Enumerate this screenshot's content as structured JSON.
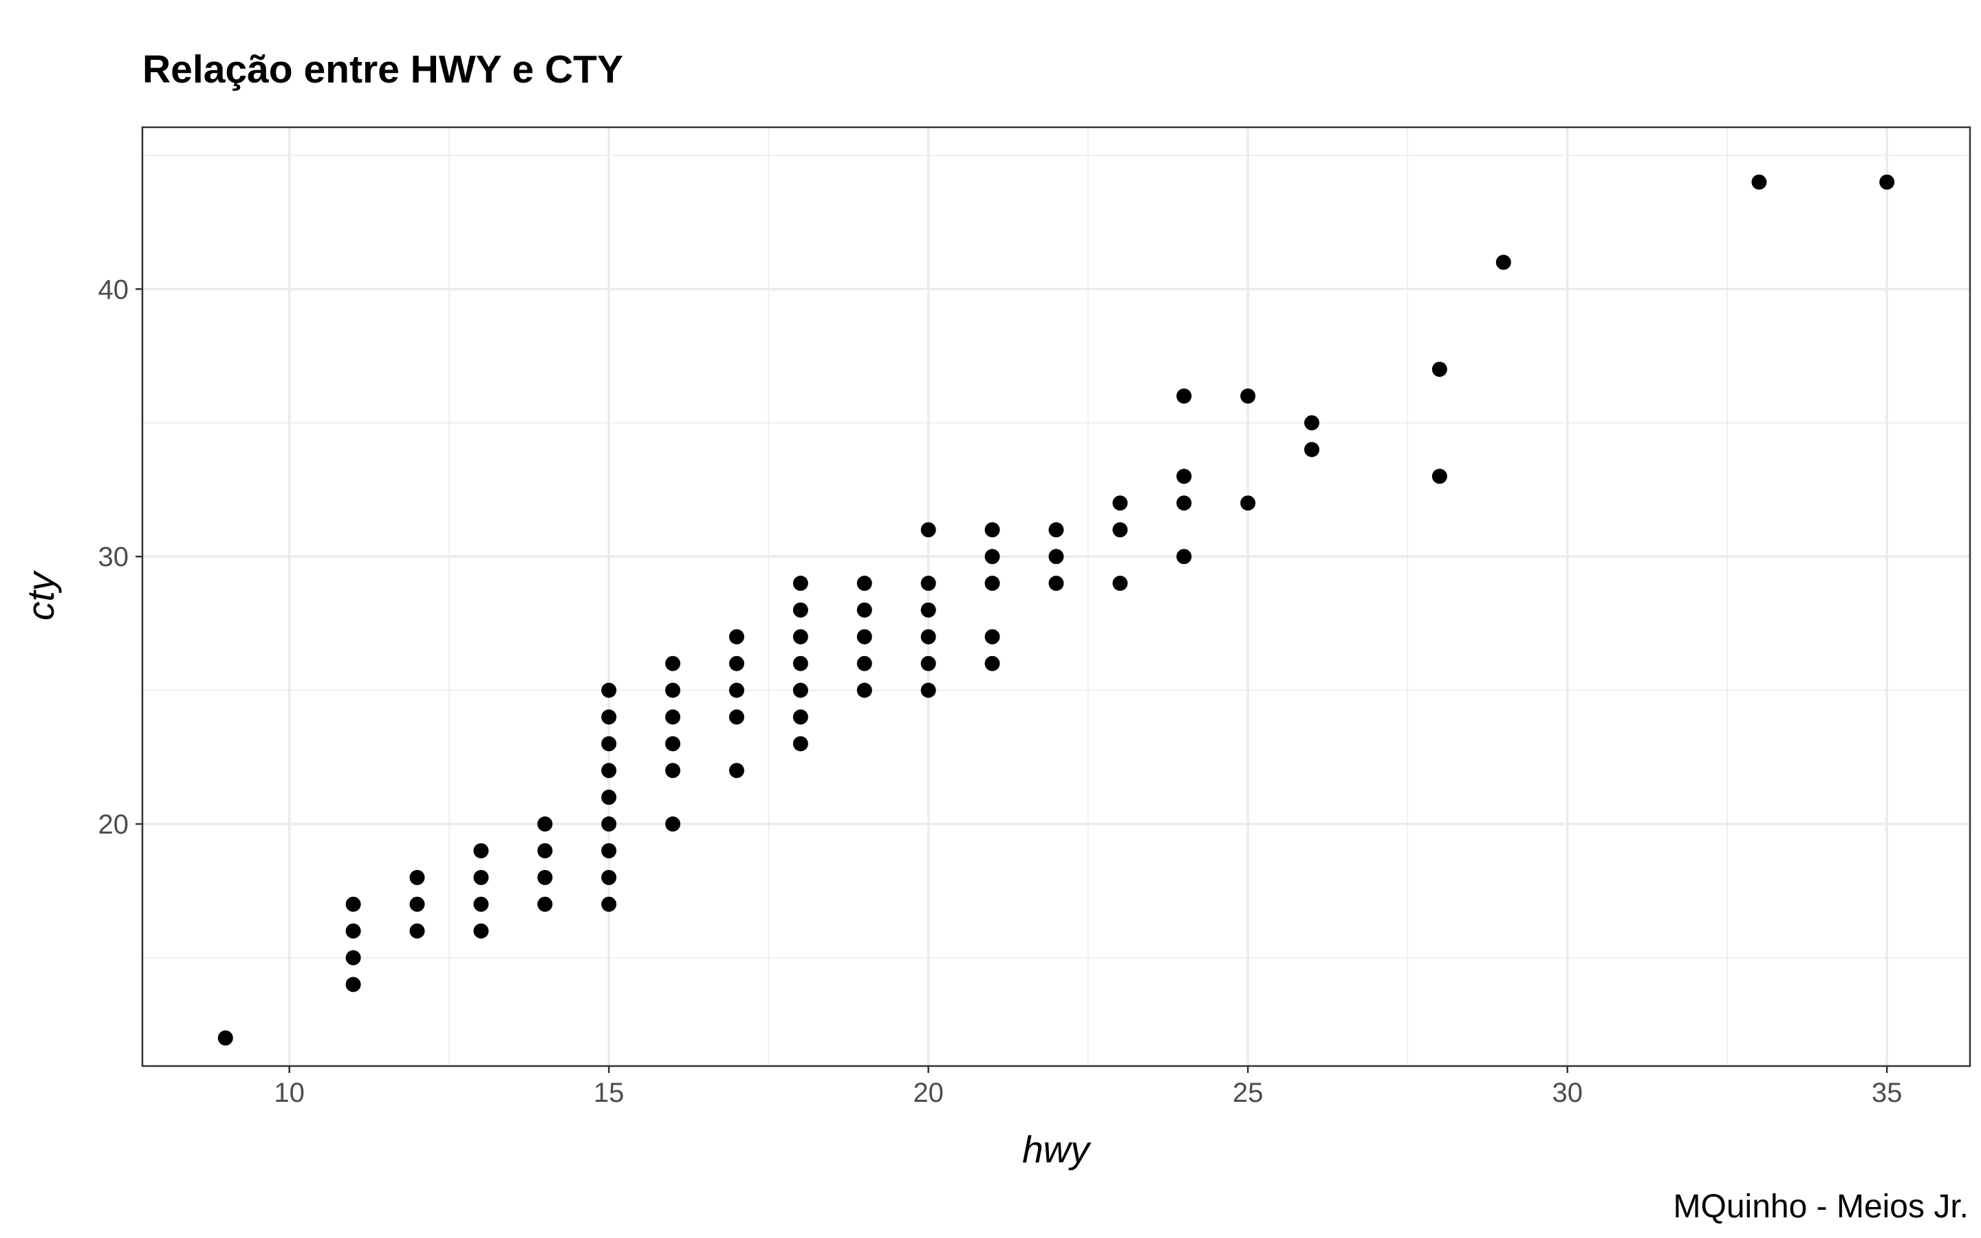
{
  "chart_data": {
    "type": "scatter",
    "title": "Relação entre HWY e CTY",
    "xlabel": "hwy",
    "ylabel": "cty",
    "caption": "MQuinho - Meios Jr.",
    "xlim": [
      7.7,
      36.3
    ],
    "ylim": [
      10.95,
      46.05
    ],
    "xticks": [
      10,
      15,
      20,
      25,
      30,
      35
    ],
    "yticks": [
      20,
      30,
      40
    ],
    "x_tick_labels": [
      "10",
      "15",
      "20",
      "25",
      "30",
      "35"
    ],
    "y_tick_labels": [
      "20",
      "30",
      "40"
    ],
    "grid": true,
    "point_color": "#000000",
    "points": [
      {
        "x": 9,
        "y": 12
      },
      {
        "x": 11,
        "y": 14
      },
      {
        "x": 11,
        "y": 15
      },
      {
        "x": 11,
        "y": 16
      },
      {
        "x": 11,
        "y": 17
      },
      {
        "x": 12,
        "y": 16
      },
      {
        "x": 12,
        "y": 17
      },
      {
        "x": 12,
        "y": 18
      },
      {
        "x": 13,
        "y": 16
      },
      {
        "x": 13,
        "y": 17
      },
      {
        "x": 13,
        "y": 18
      },
      {
        "x": 13,
        "y": 19
      },
      {
        "x": 14,
        "y": 17
      },
      {
        "x": 14,
        "y": 18
      },
      {
        "x": 14,
        "y": 19
      },
      {
        "x": 14,
        "y": 20
      },
      {
        "x": 15,
        "y": 17
      },
      {
        "x": 15,
        "y": 18
      },
      {
        "x": 15,
        "y": 19
      },
      {
        "x": 15,
        "y": 20
      },
      {
        "x": 15,
        "y": 21
      },
      {
        "x": 15,
        "y": 22
      },
      {
        "x": 15,
        "y": 23
      },
      {
        "x": 15,
        "y": 24
      },
      {
        "x": 15,
        "y": 25
      },
      {
        "x": 16,
        "y": 20
      },
      {
        "x": 16,
        "y": 22
      },
      {
        "x": 16,
        "y": 23
      },
      {
        "x": 16,
        "y": 24
      },
      {
        "x": 16,
        "y": 25
      },
      {
        "x": 16,
        "y": 26
      },
      {
        "x": 17,
        "y": 22
      },
      {
        "x": 17,
        "y": 24
      },
      {
        "x": 17,
        "y": 25
      },
      {
        "x": 17,
        "y": 26
      },
      {
        "x": 17,
        "y": 27
      },
      {
        "x": 18,
        "y": 23
      },
      {
        "x": 18,
        "y": 24
      },
      {
        "x": 18,
        "y": 25
      },
      {
        "x": 18,
        "y": 26
      },
      {
        "x": 18,
        "y": 27
      },
      {
        "x": 18,
        "y": 28
      },
      {
        "x": 18,
        "y": 29
      },
      {
        "x": 19,
        "y": 25
      },
      {
        "x": 19,
        "y": 26
      },
      {
        "x": 19,
        "y": 27
      },
      {
        "x": 19,
        "y": 28
      },
      {
        "x": 19,
        "y": 29
      },
      {
        "x": 20,
        "y": 25
      },
      {
        "x": 20,
        "y": 26
      },
      {
        "x": 20,
        "y": 27
      },
      {
        "x": 20,
        "y": 28
      },
      {
        "x": 20,
        "y": 29
      },
      {
        "x": 20,
        "y": 31
      },
      {
        "x": 21,
        "y": 26
      },
      {
        "x": 21,
        "y": 27
      },
      {
        "x": 21,
        "y": 29
      },
      {
        "x": 21,
        "y": 30
      },
      {
        "x": 21,
        "y": 31
      },
      {
        "x": 22,
        "y": 29
      },
      {
        "x": 22,
        "y": 30
      },
      {
        "x": 22,
        "y": 31
      },
      {
        "x": 23,
        "y": 29
      },
      {
        "x": 23,
        "y": 31
      },
      {
        "x": 23,
        "y": 32
      },
      {
        "x": 24,
        "y": 30
      },
      {
        "x": 24,
        "y": 32
      },
      {
        "x": 24,
        "y": 33
      },
      {
        "x": 24,
        "y": 36
      },
      {
        "x": 25,
        "y": 32
      },
      {
        "x": 25,
        "y": 36
      },
      {
        "x": 26,
        "y": 34
      },
      {
        "x": 26,
        "y": 35
      },
      {
        "x": 28,
        "y": 33
      },
      {
        "x": 28,
        "y": 37
      },
      {
        "x": 29,
        "y": 41
      },
      {
        "x": 33,
        "y": 44
      },
      {
        "x": 35,
        "y": 44
      }
    ]
  }
}
